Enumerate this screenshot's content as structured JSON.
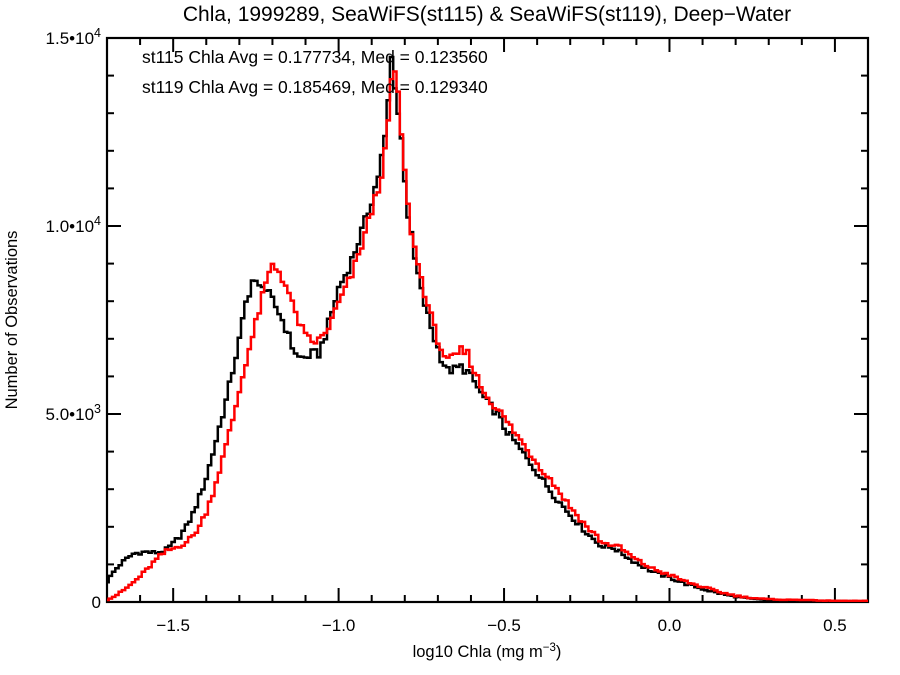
{
  "chart": {
    "title": "Chla, 1999289, SeaWiFS(st115) & SeaWiFS(st119), Deep−Water",
    "annotations": [
      {
        "text": "st115 Chla Avg = 0.177734, Med = 0.123560",
        "color": "#000000"
      },
      {
        "text": "st119 Chla Avg = 0.185469, Med = 0.129340",
        "color": "#ff0000"
      }
    ]
  },
  "chart_data": {
    "type": "line",
    "style": "histogram-step",
    "title": "Chla, 1999289, SeaWiFS(st115) & SeaWiFS(st119), Deep−Water",
    "xlabel": "log10 Chla (mg m⁻³)",
    "xlabel_parts": {
      "pre": "log10 Chla (mg m",
      "sup": "−3",
      "post": ")"
    },
    "ylabel": "Number of Observations",
    "xlim": [
      -1.7,
      0.6
    ],
    "ylim": [
      0,
      15000
    ],
    "grid": false,
    "legend_position": "none (inline text annotations top-left)",
    "x_major_ticks": [
      -1.5,
      -1.0,
      -0.5,
      0.0,
      0.5
    ],
    "x_tick_labels": [
      "−1.5",
      "−1.0",
      "−0.5",
      "0.0",
      "0.5"
    ],
    "x_minor_step": 0.1,
    "y_major_ticks": [
      0,
      5000,
      10000,
      15000
    ],
    "y_tick_labels": [
      {
        "base": "0",
        "exp": ""
      },
      {
        "base": "5.0•10",
        "exp": "3"
      },
      {
        "base": "1.0•10",
        "exp": "4"
      },
      {
        "base": "1.5•10",
        "exp": "4"
      }
    ],
    "y_minor_step": 1000,
    "bin_width": 0.01,
    "x": [
      -1.7,
      -1.68,
      -1.66,
      -1.64,
      -1.62,
      -1.6,
      -1.58,
      -1.56,
      -1.54,
      -1.52,
      -1.5,
      -1.48,
      -1.46,
      -1.44,
      -1.42,
      -1.4,
      -1.38,
      -1.36,
      -1.34,
      -1.32,
      -1.3,
      -1.28,
      -1.26,
      -1.24,
      -1.23,
      -1.22,
      -1.2,
      -1.18,
      -1.16,
      -1.14,
      -1.12,
      -1.1,
      -1.08,
      -1.06,
      -1.04,
      -1.02,
      -1.0,
      -0.98,
      -0.96,
      -0.94,
      -0.92,
      -0.9,
      -0.88,
      -0.86,
      -0.85,
      -0.84,
      -0.83,
      -0.82,
      -0.81,
      -0.8,
      -0.79,
      -0.78,
      -0.77,
      -0.76,
      -0.75,
      -0.73,
      -0.71,
      -0.69,
      -0.67,
      -0.65,
      -0.63,
      -0.61,
      -0.59,
      -0.57,
      -0.55,
      -0.52,
      -0.5,
      -0.45,
      -0.4,
      -0.35,
      -0.3,
      -0.25,
      -0.22,
      -0.2,
      -0.17,
      -0.15,
      -0.12,
      -0.1,
      -0.05,
      0.0,
      0.05,
      0.1,
      0.15,
      0.2,
      0.25,
      0.3,
      0.35,
      0.4,
      0.45,
      0.5,
      0.55,
      0.6
    ],
    "series": [
      {
        "name": "st115",
        "label": "SeaWiFS(st115)",
        "color": "#000000",
        "avg": "0.177734",
        "med": "0.123560",
        "values": [
          550,
          800,
          1000,
          1150,
          1280,
          1320,
          1330,
          1310,
          1330,
          1390,
          1550,
          1750,
          2000,
          2350,
          2800,
          3300,
          3950,
          4650,
          5350,
          6150,
          6950,
          7950,
          8550,
          8350,
          8500,
          8300,
          8000,
          7700,
          7300,
          6800,
          6500,
          6500,
          6600,
          6600,
          7100,
          7700,
          8350,
          8700,
          9100,
          9600,
          10100,
          10700,
          11350,
          12300,
          13300,
          14450,
          13800,
          13000,
          12300,
          11300,
          10300,
          9700,
          9100,
          8700,
          8250,
          7600,
          7000,
          6500,
          6150,
          6180,
          6250,
          6120,
          5850,
          5550,
          5300,
          5000,
          4650,
          4050,
          3450,
          2850,
          2320,
          1840,
          1600,
          1465,
          1450,
          1330,
          1150,
          1040,
          800,
          650,
          480,
          350,
          230,
          140,
          85,
          55,
          40,
          35,
          28,
          25,
          22,
          20
        ]
      },
      {
        "name": "st119",
        "label": "SeaWiFS(st119)",
        "color": "#ff0000",
        "avg": "0.185469",
        "med": "0.129340",
        "values": [
          60,
          140,
          250,
          380,
          520,
          680,
          860,
          1050,
          1220,
          1350,
          1420,
          1500,
          1600,
          1760,
          2020,
          2400,
          2900,
          3500,
          4150,
          4850,
          5600,
          6400,
          7050,
          7750,
          8100,
          8450,
          8950,
          8800,
          8450,
          7900,
          7450,
          7050,
          6920,
          6950,
          7150,
          7500,
          7950,
          8300,
          8700,
          9200,
          9800,
          10400,
          11000,
          11900,
          12700,
          13900,
          14050,
          13400,
          12500,
          11400,
          10500,
          9900,
          9400,
          9000,
          8600,
          7900,
          7250,
          6750,
          6400,
          6500,
          6680,
          6600,
          6150,
          5750,
          5450,
          5150,
          4900,
          4300,
          3700,
          3150,
          2530,
          2000,
          1750,
          1560,
          1520,
          1450,
          1250,
          1120,
          880,
          720,
          540,
          400,
          270,
          170,
          105,
          75,
          58,
          60,
          40,
          32,
          30,
          28
        ]
      }
    ]
  }
}
